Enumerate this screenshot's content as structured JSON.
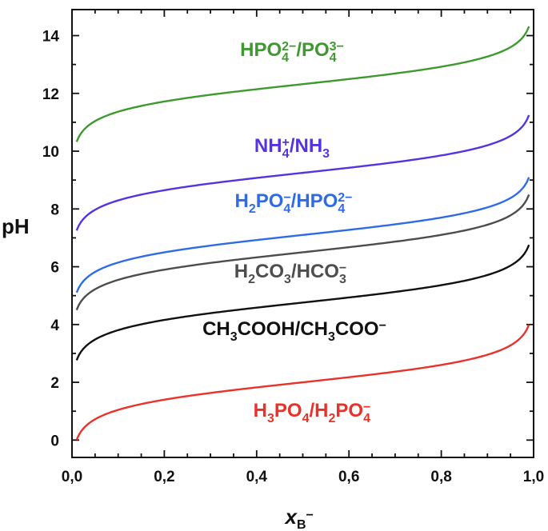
{
  "chart_data": {
    "type": "line",
    "xlabel": "x",
    "xlabel_sub": "B",
    "xlabel_sup": "−",
    "ylabel": "pH",
    "xlim": [
      0.0,
      1.0
    ],
    "ylim": [
      -0.6,
      14.9
    ],
    "xticks": [
      0.0,
      0.2,
      0.4,
      0.6,
      0.8,
      1.0
    ],
    "xtick_labels": [
      "0,0",
      "0,2",
      "0,4",
      "0,6",
      "0,8",
      "1,0"
    ],
    "yticks": [
      0,
      2,
      4,
      6,
      8,
      10,
      12,
      14
    ],
    "ytick_labels": [
      "0",
      "2",
      "4",
      "6",
      "8",
      "10",
      "12",
      "14"
    ],
    "grid": false,
    "x_range": [
      0.01,
      0.99
    ],
    "series": [
      {
        "pKa": 2.0,
        "color": "#e8322a",
        "label_parts": [
          [
            "H",
            ""
          ],
          [
            "3",
            "sub"
          ],
          [
            "PO",
            ""
          ],
          [
            "4",
            "sub"
          ],
          [
            "/H",
            ""
          ],
          [
            "2",
            "sub"
          ],
          [
            "PO",
            ""
          ],
          [
            "4",
            "sub"
          ],
          [
            "−",
            "sup"
          ]
        ]
      },
      {
        "pKa": 4.76,
        "color": "#111111",
        "label_parts": [
          [
            "CH",
            ""
          ],
          [
            "3",
            "sub"
          ],
          [
            "COOH/CH",
            ""
          ],
          [
            "3",
            "sub"
          ],
          [
            "COO",
            ""
          ],
          [
            "−",
            "sup"
          ]
        ]
      },
      {
        "pKa": 6.5,
        "color": "#4d4d4d",
        "label_parts": [
          [
            "H",
            ""
          ],
          [
            "2",
            "sub"
          ],
          [
            "CO",
            ""
          ],
          [
            "3",
            "sub"
          ],
          [
            "/HCO",
            ""
          ],
          [
            "3",
            "sub"
          ],
          [
            "−",
            "sup"
          ]
        ]
      },
      {
        "pKa": 7.1,
        "color": "#2f6be6",
        "label_parts": [
          [
            "H",
            ""
          ],
          [
            "2",
            "sub"
          ],
          [
            "PO",
            ""
          ],
          [
            "4",
            "sub"
          ],
          [
            "−",
            "sup"
          ],
          [
            "/HPO",
            ""
          ],
          [
            "4",
            "sub"
          ],
          [
            "2−",
            "sup"
          ]
        ]
      },
      {
        "pKa": 9.25,
        "color": "#5533e0",
        "label_parts": [
          [
            "NH",
            ""
          ],
          [
            "4",
            "sub"
          ],
          [
            "+",
            "sup"
          ],
          [
            "/NH",
            ""
          ],
          [
            "3",
            "sub"
          ]
        ]
      },
      {
        "pKa": 12.32,
        "color": "#3e9a2e",
        "label_parts": [
          [
            "HPO",
            ""
          ],
          [
            "4",
            "sub"
          ],
          [
            "2−",
            "sup"
          ],
          [
            "/PO",
            ""
          ],
          [
            "4",
            "sub"
          ],
          [
            "3−",
            "sup"
          ]
        ]
      }
    ]
  }
}
